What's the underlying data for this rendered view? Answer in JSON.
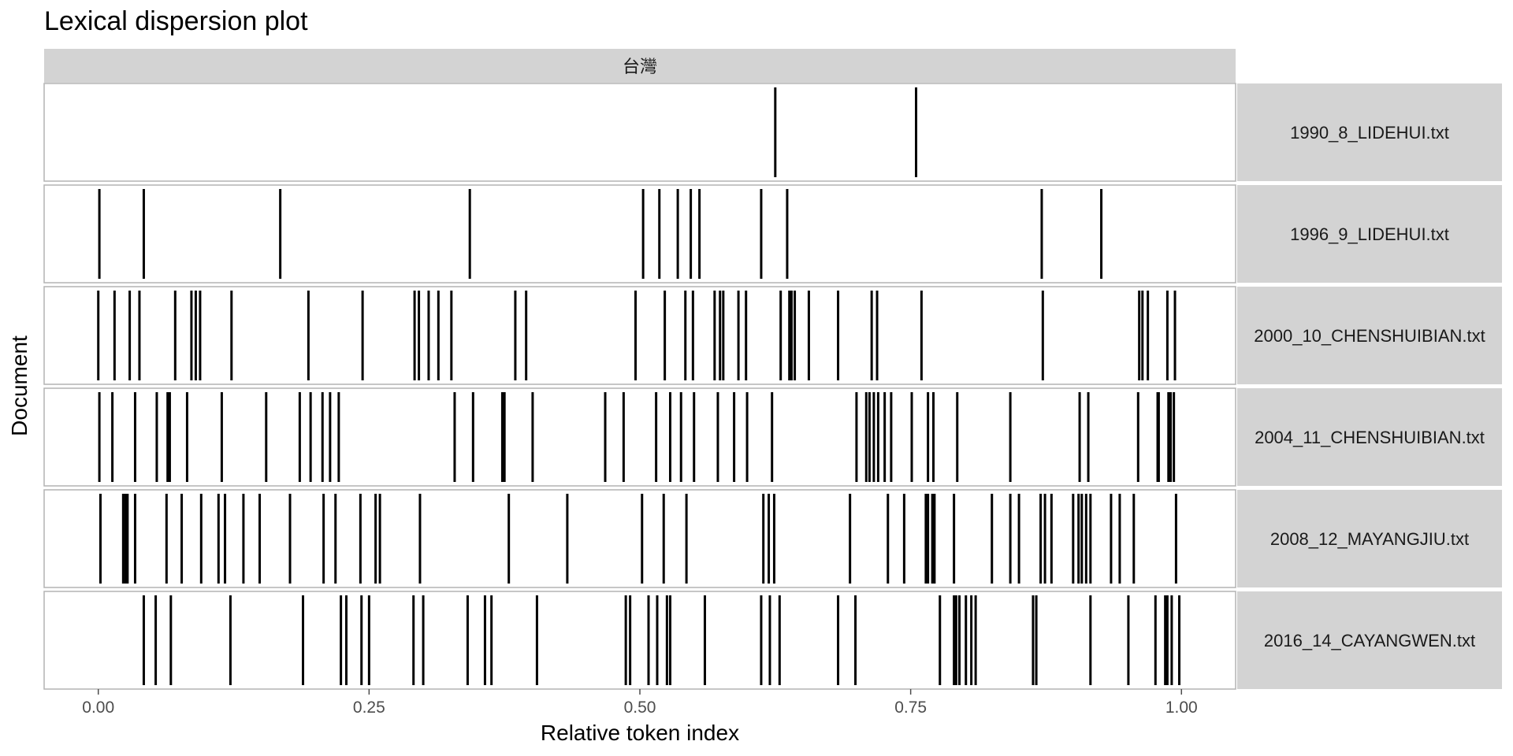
{
  "chart_data": {
    "type": "dispersion",
    "title": "Lexical dispersion plot",
    "facet_label": "台灣",
    "xlabel": "Relative token index",
    "ylabel": "Document",
    "xlim": [
      -0.05,
      1.05
    ],
    "x_ticks": [
      0,
      0.25,
      0.5,
      0.75,
      1.0
    ],
    "x_tick_labels": [
      "0.00",
      "0.25",
      "0.50",
      "0.75",
      "1.00"
    ],
    "grid": false,
    "colors": {
      "strip": "#d3d3d3",
      "mark": "#000000",
      "border": "#b3b3b3"
    },
    "documents": [
      {
        "name": "1990_8_LIDEHUI.txt",
        "positions": [
          0.625,
          0.755
        ]
      },
      {
        "name": "1996_9_LIDEHUI.txt",
        "positions": [
          0.001,
          0.042,
          0.168,
          0.343,
          0.503,
          0.518,
          0.535,
          0.547,
          0.555,
          0.612,
          0.636,
          0.871,
          0.926
        ]
      },
      {
        "name": "2000_10_CHENSHUIBIAN.txt",
        "positions": [
          0.0,
          0.015,
          0.029,
          0.038,
          0.071,
          0.086,
          0.09,
          0.094,
          0.123,
          0.194,
          0.244,
          0.292,
          0.296,
          0.305,
          0.314,
          0.326,
          0.385,
          0.395,
          0.496,
          0.523,
          0.542,
          0.549,
          0.569,
          0.574,
          0.577,
          0.591,
          0.598,
          0.63,
          0.638,
          0.64,
          0.643,
          0.656,
          0.683,
          0.714,
          0.719,
          0.76,
          0.872,
          0.961,
          0.964,
          0.969,
          0.987,
          0.994
        ]
      },
      {
        "name": "2004_11_CHENSHUIBIAN.txt",
        "positions": [
          0.001,
          0.013,
          0.034,
          0.054,
          0.064,
          0.066,
          0.082,
          0.114,
          0.155,
          0.186,
          0.196,
          0.207,
          0.214,
          0.222,
          0.329,
          0.346,
          0.373,
          0.375,
          0.401,
          0.468,
          0.485,
          0.515,
          0.528,
          0.538,
          0.55,
          0.572,
          0.587,
          0.599,
          0.622,
          0.7,
          0.709,
          0.712,
          0.716,
          0.72,
          0.726,
          0.732,
          0.751,
          0.766,
          0.771,
          0.793,
          0.842,
          0.906,
          0.914,
          0.96,
          0.978,
          0.979,
          0.988,
          0.99,
          0.993
        ]
      },
      {
        "name": "2008_12_MAYANGJIU.txt",
        "positions": [
          0.002,
          0.023,
          0.025,
          0.027,
          0.034,
          0.063,
          0.077,
          0.095,
          0.111,
          0.117,
          0.134,
          0.149,
          0.177,
          0.208,
          0.219,
          0.242,
          0.256,
          0.26,
          0.297,
          0.379,
          0.433,
          0.502,
          0.522,
          0.543,
          0.614,
          0.619,
          0.624,
          0.694,
          0.729,
          0.744,
          0.764,
          0.766,
          0.77,
          0.772,
          0.79,
          0.825,
          0.842,
          0.85,
          0.87,
          0.874,
          0.88,
          0.9,
          0.905,
          0.908,
          0.912,
          0.916,
          0.935,
          0.943,
          0.956,
          0.995
        ]
      },
      {
        "name": "2016_14_CAYANGWEN.txt",
        "positions": [
          0.042,
          0.053,
          0.067,
          0.122,
          0.189,
          0.224,
          0.229,
          0.243,
          0.25,
          0.291,
          0.3,
          0.341,
          0.357,
          0.363,
          0.405,
          0.487,
          0.491,
          0.508,
          0.516,
          0.525,
          0.528,
          0.56,
          0.612,
          0.62,
          0.629,
          0.683,
          0.699,
          0.777,
          0.79,
          0.792,
          0.795,
          0.801,
          0.806,
          0.81,
          0.863,
          0.866,
          0.916,
          0.951,
          0.976,
          0.985,
          0.987,
          0.991,
          0.998
        ]
      }
    ]
  }
}
